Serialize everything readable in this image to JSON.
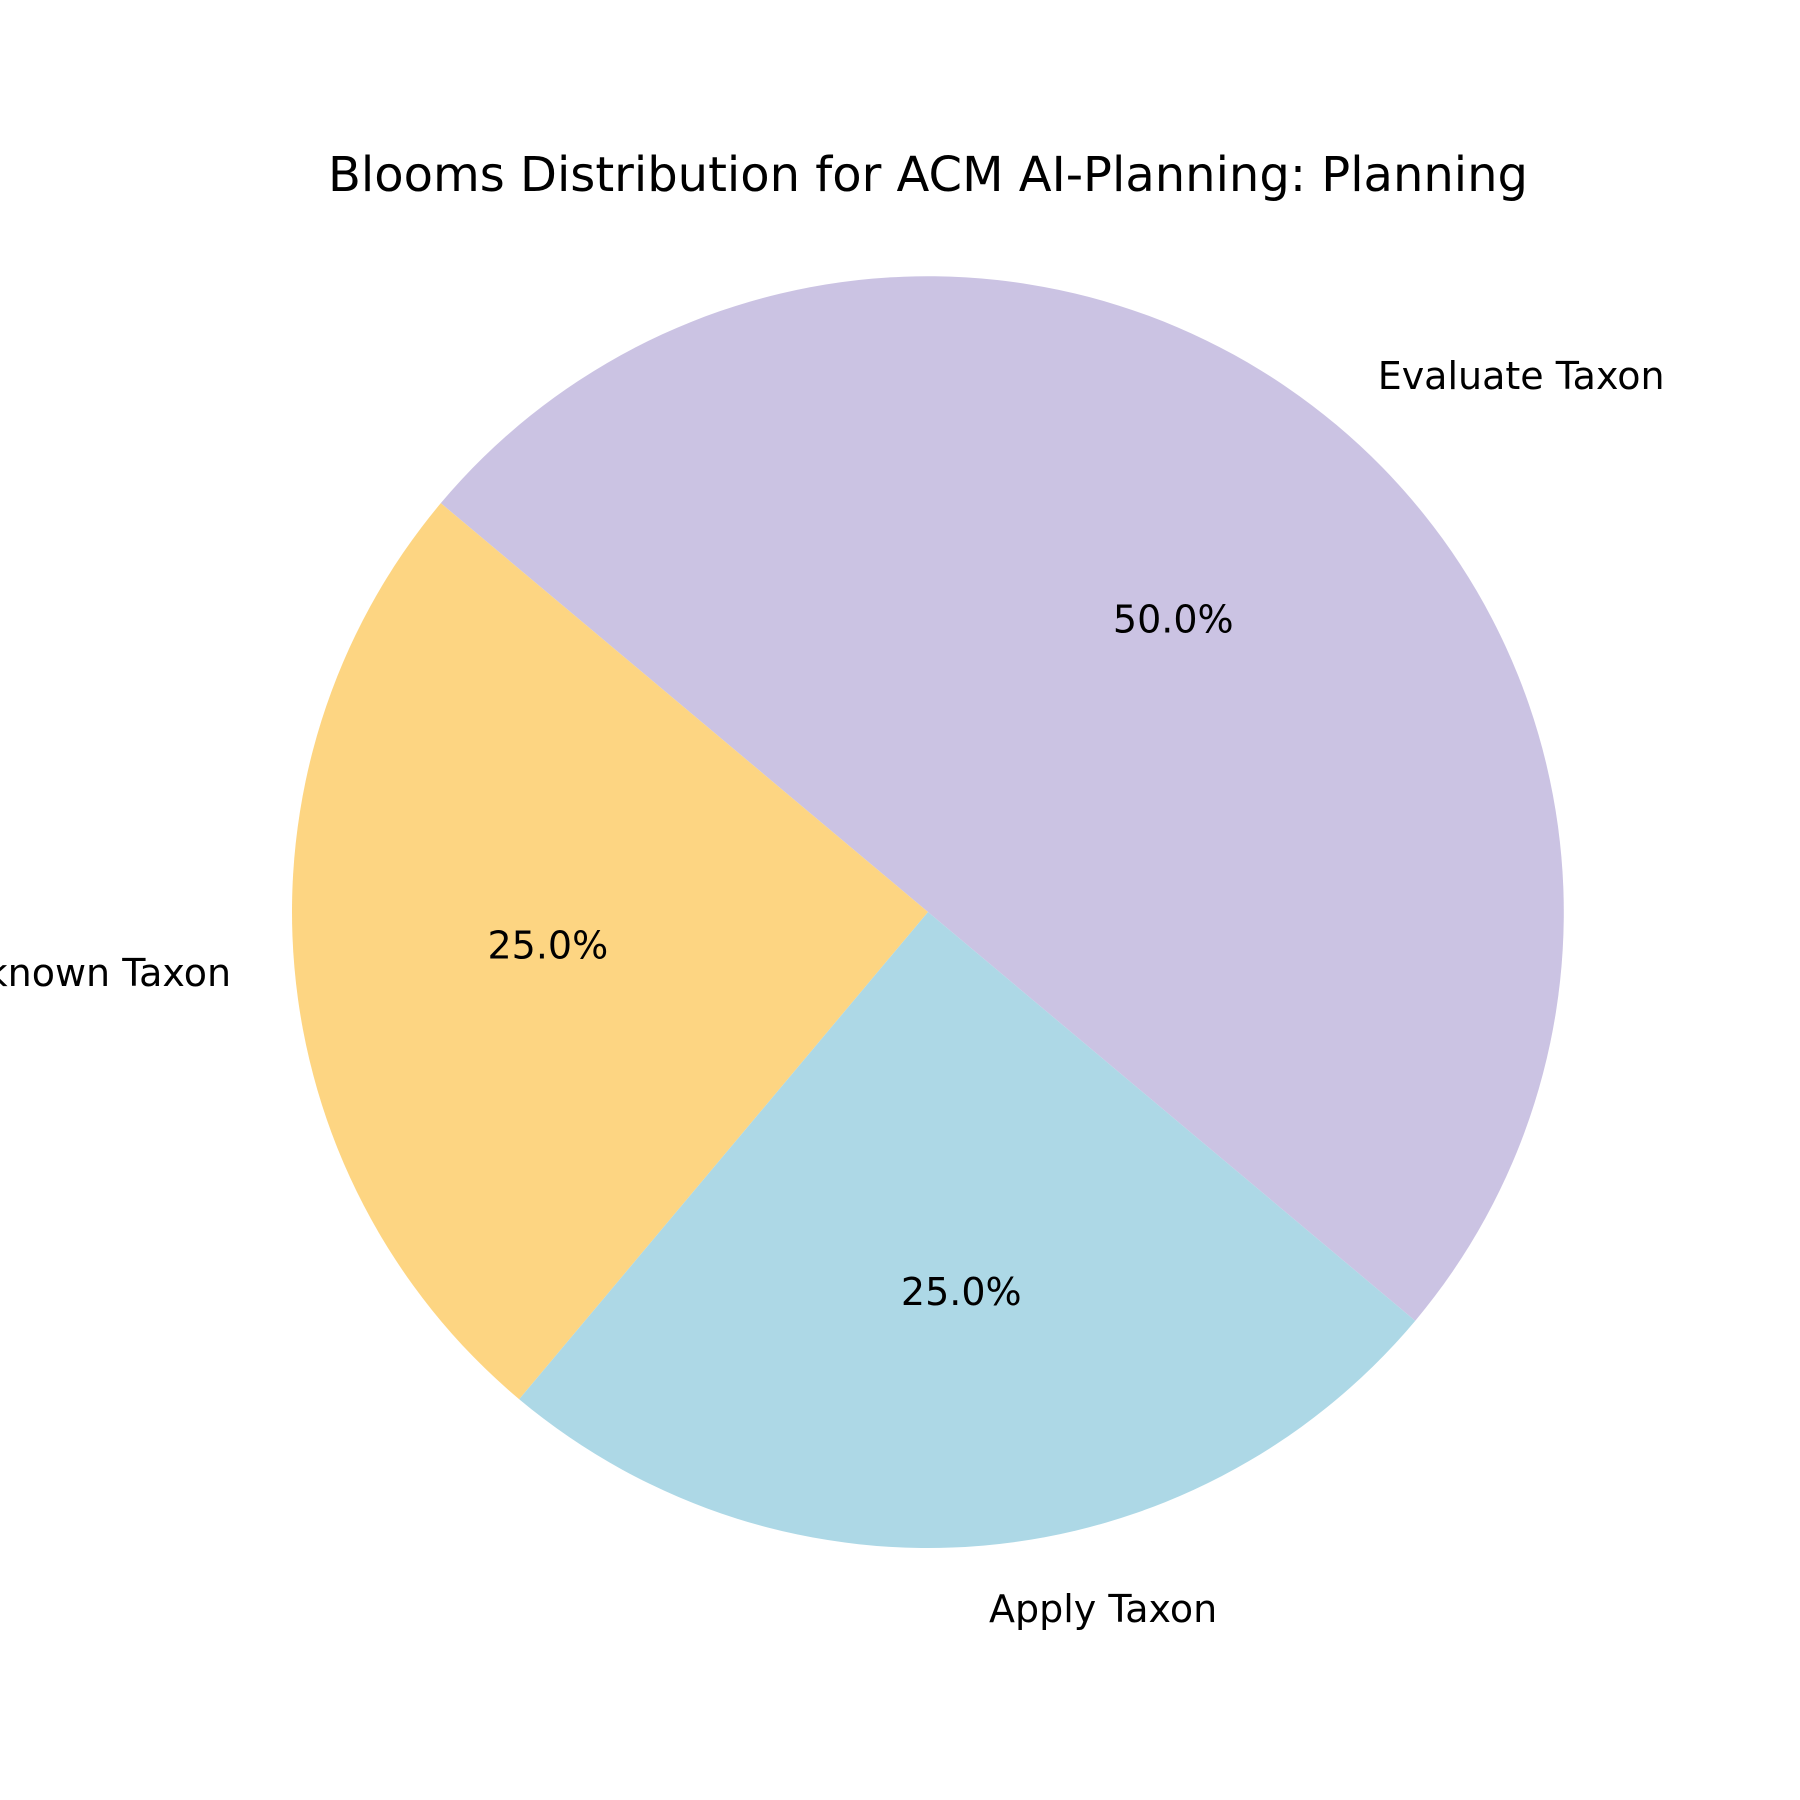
{
  "chart_data": {
    "type": "pie",
    "title": "Blooms Distribution for ACM AI-Planning: Planning",
    "slices": [
      {
        "label": "Evaluate Taxon",
        "value": 50.0,
        "pct_label": "50.0%",
        "color": "#cbc3e3"
      },
      {
        "label": "Unknown Taxon",
        "value": 25.0,
        "pct_label": "25.0%",
        "color": "#fdd582"
      },
      {
        "label": "Apply Taxon",
        "value": 25.0,
        "pct_label": "25.0%",
        "color": "#add8e6"
      }
    ],
    "legend": "none"
  }
}
